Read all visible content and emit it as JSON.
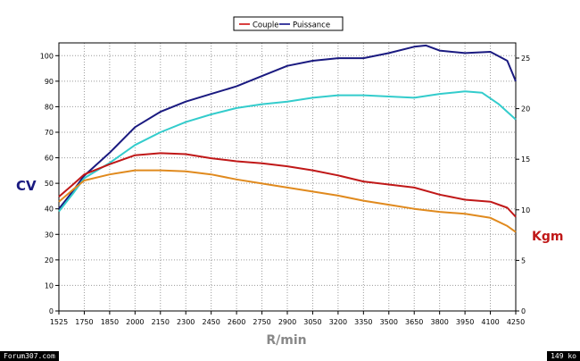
{
  "chart_data": {
    "type": "line",
    "title": "",
    "xlabel": "R/min",
    "ylabel_left": "CV",
    "ylabel_right": "Kgm",
    "x_ticks": [
      1525,
      1750,
      1850,
      2000,
      2150,
      2300,
      2450,
      2600,
      2750,
      2900,
      3050,
      3200,
      3350,
      3500,
      3650,
      3800,
      3950,
      4100,
      4250
    ],
    "x_tick_labels": [
      "1525",
      "1750",
      "1850",
      "2000",
      "2150",
      "2300",
      "2450",
      "2600",
      "2750",
      "2900",
      "3050",
      "3200",
      "3350",
      "3500",
      "3650",
      "3800",
      "3950",
      "4100",
      "4250"
    ],
    "ylim_left": [
      0,
      105
    ],
    "y_ticks_left": [
      0,
      10,
      20,
      30,
      40,
      50,
      60,
      70,
      80,
      90,
      100
    ],
    "ylim_right": [
      0,
      26.5
    ],
    "y_ticks_right": [
      0,
      5,
      10,
      15,
      20,
      25
    ],
    "grid": true,
    "legend": {
      "position": "top-center",
      "entries": [
        {
          "label": "Couple",
          "color": "#cc0000"
        },
        {
          "label": "Puissance",
          "color": "#000080"
        }
      ]
    },
    "series": [
      {
        "name": "Puissance",
        "axis": "left",
        "color": "#1a1a80",
        "x": [
          1525,
          1650,
          1750,
          1850,
          2000,
          2150,
          2300,
          2450,
          2600,
          2750,
          2900,
          3050,
          3200,
          3350,
          3500,
          3650,
          3720,
          3800,
          3950,
          4100,
          4200,
          4250
        ],
        "y": [
          40,
          47,
          53,
          62,
          72,
          78,
          82,
          85,
          88,
          92,
          96,
          98,
          99,
          99,
          101,
          103.5,
          104,
          102,
          101,
          101.5,
          98,
          90
        ]
      },
      {
        "color": "#33cccc",
        "axis": "left",
        "x": [
          1525,
          1650,
          1750,
          1850,
          2000,
          2150,
          2300,
          2450,
          2600,
          2750,
          2900,
          3050,
          3200,
          3350,
          3500,
          3650,
          3800,
          3950,
          4050,
          4150,
          4250
        ],
        "y": [
          39,
          46,
          52,
          58,
          65,
          70,
          74,
          77,
          79.5,
          81,
          82,
          83.5,
          84.5,
          84.5,
          84,
          83.5,
          85,
          86,
          85.5,
          81,
          75
        ]
      },
      {
        "name": "Couple",
        "axis": "right",
        "color": "#c01818",
        "x": [
          1525,
          1650,
          1750,
          1850,
          2000,
          2150,
          2300,
          2450,
          2600,
          2750,
          2900,
          3050,
          3200,
          3350,
          3500,
          3650,
          3800,
          3950,
          4100,
          4200,
          4250
        ],
        "y": [
          11.3,
          12.5,
          13.5,
          14.5,
          15.4,
          15.6,
          15.5,
          15.1,
          14.8,
          14.6,
          14.3,
          13.9,
          13.4,
          12.8,
          12.5,
          12.2,
          11.5,
          11.0,
          10.8,
          10.2,
          9.3
        ]
      },
      {
        "color": "#e08a1e",
        "axis": "right",
        "x": [
          1525,
          1650,
          1750,
          1850,
          2000,
          2150,
          2300,
          2450,
          2600,
          2750,
          2900,
          3050,
          3200,
          3350,
          3500,
          3650,
          3800,
          3950,
          4100,
          4200,
          4250
        ],
        "y": [
          10.8,
          12.0,
          12.9,
          13.5,
          13.9,
          13.9,
          13.8,
          13.5,
          13.0,
          12.6,
          12.2,
          11.8,
          11.4,
          10.9,
          10.5,
          10.1,
          9.8,
          9.6,
          9.2,
          8.4,
          7.8
        ]
      }
    ]
  },
  "footer": {
    "left_text": "Forum307.com",
    "right_text": "149 ko"
  }
}
